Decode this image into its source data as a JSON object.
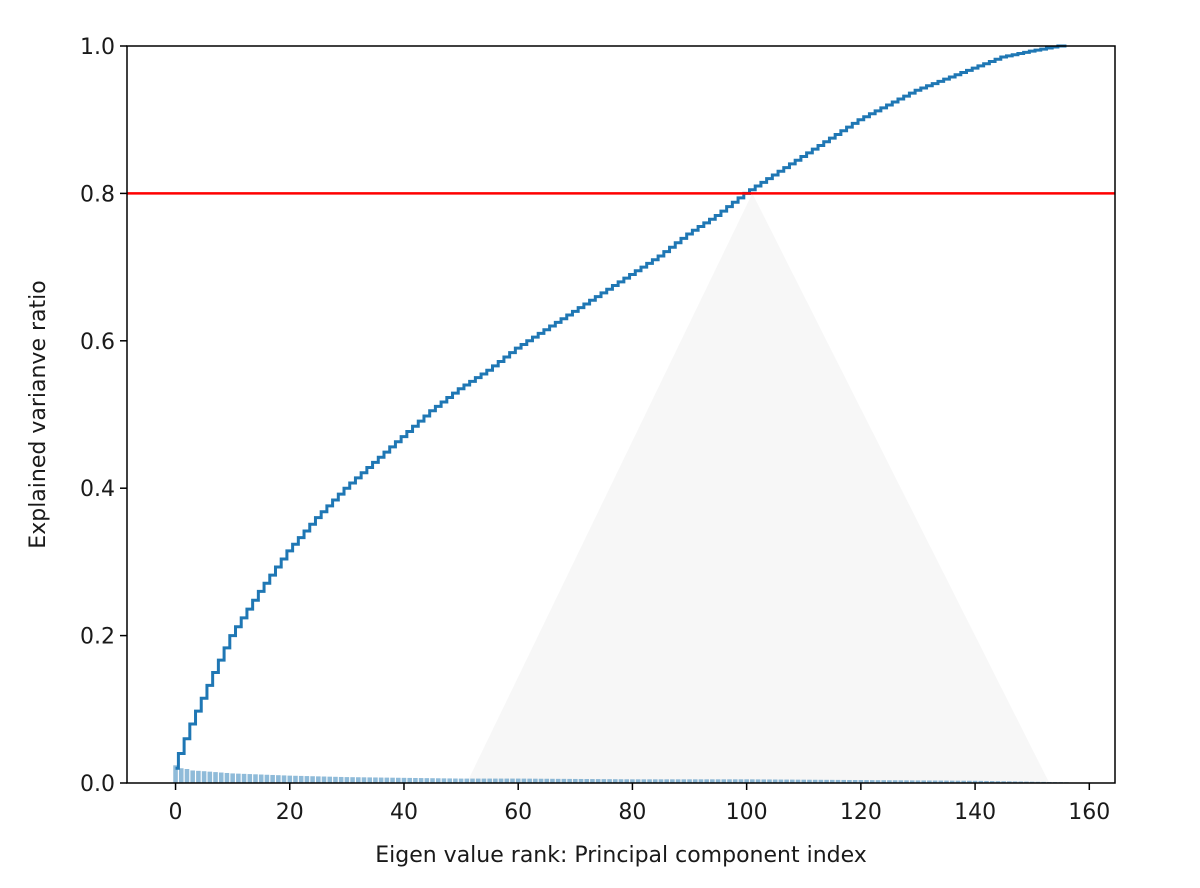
{
  "chart_data": {
    "type": "line",
    "title": "",
    "xlabel": "Eigen value rank: Principal component index",
    "ylabel": "Explained varianve ratio",
    "xlim": [
      -8.5,
      164.5
    ],
    "ylim": [
      0.0,
      1.0
    ],
    "x_ticks": [
      0,
      20,
      40,
      60,
      80,
      100,
      120,
      140,
      160
    ],
    "y_ticks": [
      "0.0",
      "0.2",
      "0.4",
      "0.6",
      "0.8",
      "1.0"
    ],
    "grid": false,
    "legend": "none",
    "n_components": 157,
    "series": [
      {
        "kind": "step",
        "color": "#1f77b4",
        "cumulative_points": [
          [
            0,
            0.02
          ],
          [
            1,
            0.04
          ],
          [
            2,
            0.06
          ],
          [
            3,
            0.08
          ],
          [
            5,
            0.115
          ],
          [
            7,
            0.15
          ],
          [
            10,
            0.2
          ],
          [
            15,
            0.26
          ],
          [
            20,
            0.315
          ],
          [
            25,
            0.36
          ],
          [
            30,
            0.4
          ],
          [
            35,
            0.435
          ],
          [
            40,
            0.47
          ],
          [
            45,
            0.505
          ],
          [
            50,
            0.535
          ],
          [
            55,
            0.56
          ],
          [
            60,
            0.59
          ],
          [
            65,
            0.615
          ],
          [
            70,
            0.64
          ],
          [
            75,
            0.665
          ],
          [
            80,
            0.69
          ],
          [
            85,
            0.715
          ],
          [
            90,
            0.745
          ],
          [
            95,
            0.77
          ],
          [
            100,
            0.8
          ],
          [
            105,
            0.825
          ],
          [
            110,
            0.85
          ],
          [
            115,
            0.875
          ],
          [
            120,
            0.9
          ],
          [
            125,
            0.92
          ],
          [
            130,
            0.94
          ],
          [
            135,
            0.955
          ],
          [
            140,
            0.97
          ],
          [
            145,
            0.985
          ],
          [
            150,
            0.993
          ],
          [
            155,
            1.0
          ],
          [
            156,
            1.0
          ]
        ]
      },
      {
        "kind": "bar",
        "color": "#1f77b4",
        "alpha": 0.5,
        "individual_points": [
          [
            0,
            0.024
          ],
          [
            1,
            0.02
          ],
          [
            2,
            0.019
          ],
          [
            3,
            0.017
          ],
          [
            5,
            0.016
          ],
          [
            10,
            0.013
          ],
          [
            20,
            0.01
          ],
          [
            30,
            0.008
          ],
          [
            40,
            0.007
          ],
          [
            50,
            0.006
          ],
          [
            60,
            0.006
          ],
          [
            80,
            0.005
          ],
          [
            100,
            0.005
          ],
          [
            120,
            0.004
          ],
          [
            140,
            0.003
          ],
          [
            156,
            0.001
          ]
        ]
      }
    ],
    "annotations": [
      {
        "kind": "hline",
        "y": 0.8,
        "color": "#ff0000"
      }
    ]
  }
}
